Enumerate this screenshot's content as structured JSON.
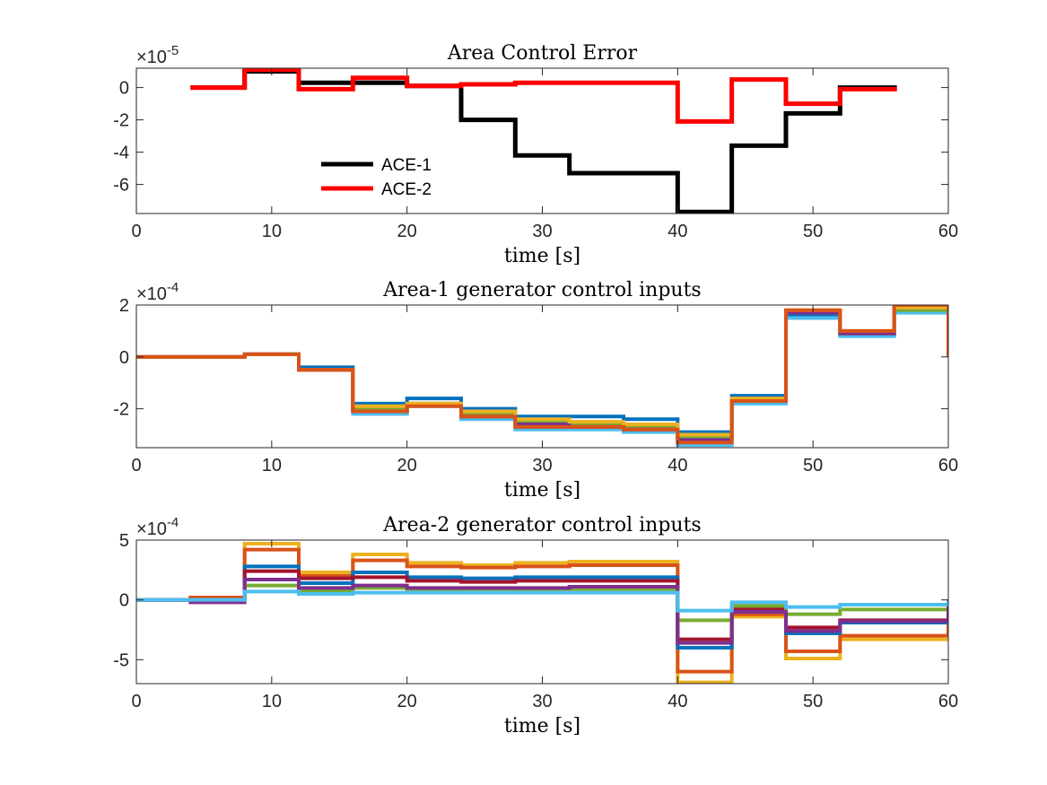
{
  "chart_data": [
    {
      "type": "line",
      "step": true,
      "title": "Area Control Error",
      "xlabel": "time [s]",
      "ylabel": "",
      "exponent_base": "×10",
      "exponent_power": "-5",
      "xlim": [
        0,
        60
      ],
      "ylim": [
        -7.8,
        1.2
      ],
      "xticks": [
        "0",
        "10",
        "20",
        "30",
        "40",
        "50",
        "60"
      ],
      "yticks": [
        "0",
        "-2",
        "-4",
        "-6"
      ],
      "ytick_values": [
        0,
        -2,
        -4,
        -6
      ],
      "legend_location": "lower-left",
      "series": [
        {
          "name": "ACE-1",
          "color": "#000000",
          "linewidth": 5,
          "x": [
            4,
            8,
            12,
            16,
            20,
            24,
            28,
            32,
            36,
            40,
            44,
            48,
            52,
            56
          ],
          "y": [
            0,
            1.0,
            0.3,
            0.3,
            0.1,
            -2.0,
            -4.2,
            -5.3,
            -5.3,
            -7.7,
            -3.6,
            -1.6,
            0.0,
            0.0
          ]
        },
        {
          "name": "ACE-2",
          "color": "#ff0000",
          "linewidth": 5,
          "x": [
            4,
            8,
            12,
            16,
            20,
            24,
            28,
            32,
            36,
            40,
            44,
            48,
            52,
            56
          ],
          "y": [
            0,
            1.1,
            -0.1,
            0.6,
            0.1,
            0.2,
            0.3,
            0.3,
            0.3,
            -2.1,
            0.5,
            -1.0,
            -0.1,
            -0.1
          ]
        }
      ]
    },
    {
      "type": "line",
      "step": true,
      "title": "Area-1 generator control inputs",
      "xlabel": "time [s]",
      "ylabel": "",
      "exponent_base": "×10",
      "exponent_power": "-4",
      "xlim": [
        0,
        60
      ],
      "ylim": [
        -3.5,
        2.0
      ],
      "xticks": [
        "0",
        "10",
        "20",
        "30",
        "40",
        "50",
        "60"
      ],
      "yticks": [
        "2",
        "0",
        "-2"
      ],
      "ytick_values": [
        2,
        0,
        -2
      ],
      "series": [
        {
          "color": "#0072bd",
          "x": [
            0,
            8,
            12,
            16,
            20,
            24,
            28,
            32,
            36,
            40,
            44,
            48,
            52,
            56,
            60
          ],
          "y": [
            0,
            0.1,
            -0.4,
            -1.8,
            -1.6,
            -2.0,
            -2.3,
            -2.3,
            -2.4,
            -2.9,
            -1.5,
            1.6,
            0.9,
            1.8,
            1.8
          ]
        },
        {
          "color": "#4dbeee",
          "x": [
            0,
            8,
            12,
            16,
            20,
            24,
            28,
            32,
            36,
            40,
            44,
            48,
            52,
            56,
            60
          ],
          "y": [
            0,
            0.1,
            -0.5,
            -2.2,
            -1.9,
            -2.4,
            -2.8,
            -2.8,
            -2.9,
            -3.4,
            -1.8,
            1.5,
            0.8,
            1.7,
            1.7
          ]
        },
        {
          "color": "#77ac30",
          "x": [
            0,
            8,
            12,
            16,
            20,
            24,
            28,
            32,
            36,
            40,
            44,
            48,
            52,
            56,
            60
          ],
          "y": [
            0,
            0.1,
            -0.5,
            -2.0,
            -1.8,
            -2.2,
            -2.5,
            -2.6,
            -2.7,
            -3.1,
            -1.7,
            1.7,
            0.9,
            1.8,
            1.8
          ]
        },
        {
          "color": "#7e2f8e",
          "x": [
            0,
            8,
            12,
            16,
            20,
            24,
            28,
            32,
            36,
            40,
            44,
            48,
            52,
            56,
            60
          ],
          "y": [
            0,
            0.1,
            -0.5,
            -2.1,
            -1.8,
            -2.3,
            -2.6,
            -2.7,
            -2.8,
            -3.2,
            -1.7,
            1.7,
            0.9,
            1.9,
            1.9
          ]
        },
        {
          "color": "#edb120",
          "x": [
            0,
            8,
            12,
            16,
            20,
            24,
            28,
            32,
            36,
            40,
            44,
            48,
            52,
            56,
            60
          ],
          "y": [
            0,
            0.1,
            -0.5,
            -1.9,
            -1.8,
            -2.1,
            -2.4,
            -2.5,
            -2.6,
            -3.0,
            -1.6,
            1.8,
            1.0,
            1.9,
            1.9
          ]
        },
        {
          "color": "#d95319",
          "x": [
            0,
            8,
            12,
            16,
            20,
            24,
            28,
            32,
            36,
            40,
            44,
            48,
            52,
            56,
            60
          ],
          "y": [
            0,
            0.1,
            -0.5,
            -2.1,
            -1.9,
            -2.3,
            -2.7,
            -2.7,
            -2.8,
            -3.3,
            -1.7,
            1.8,
            1.0,
            2.0,
            2.0
          ]
        }
      ]
    },
    {
      "type": "line",
      "step": true,
      "title": "Area-2 generator control inputs",
      "xlabel": "time [s]",
      "ylabel": "",
      "exponent_base": "×10",
      "exponent_power": "-4",
      "xlim": [
        0,
        60
      ],
      "ylim": [
        -7,
        5
      ],
      "xticks": [
        "0",
        "10",
        "20",
        "30",
        "40",
        "50",
        "60"
      ],
      "yticks": [
        "5",
        "0",
        "-5"
      ],
      "ytick_values": [
        5,
        0,
        -5
      ],
      "series": [
        {
          "color": "#edb120",
          "x": [
            0,
            4,
            8,
            12,
            16,
            20,
            24,
            28,
            32,
            36,
            40,
            44,
            48,
            52,
            56,
            60
          ],
          "y": [
            0,
            0.2,
            4.7,
            2.3,
            3.8,
            3.1,
            2.9,
            3.1,
            3.2,
            3.2,
            -6.9,
            -1.4,
            -4.9,
            -3.3,
            -3.3,
            -3.3
          ]
        },
        {
          "color": "#d95319",
          "x": [
            0,
            4,
            8,
            12,
            16,
            20,
            24,
            28,
            32,
            36,
            40,
            44,
            48,
            52,
            56,
            60
          ],
          "y": [
            0,
            0.2,
            4.2,
            2.0,
            3.3,
            2.8,
            2.7,
            2.8,
            2.9,
            2.9,
            -6.0,
            -1.2,
            -4.3,
            -3.0,
            -3.0,
            -3.0
          ]
        },
        {
          "color": "#0072bd",
          "x": [
            0,
            4,
            8,
            12,
            16,
            20,
            24,
            28,
            32,
            36,
            40,
            44,
            48,
            52,
            56,
            60
          ],
          "y": [
            0,
            0,
            2.8,
            1.4,
            2.3,
            1.9,
            1.8,
            1.9,
            1.9,
            1.9,
            -4.0,
            -0.9,
            -2.8,
            -1.9,
            -1.9,
            -1.9
          ]
        },
        {
          "color": "#a2142f",
          "x": [
            0,
            4,
            8,
            12,
            16,
            20,
            24,
            28,
            32,
            36,
            40,
            44,
            48,
            52,
            56,
            60
          ],
          "y": [
            0,
            0,
            2.4,
            1.8,
            1.9,
            1.6,
            1.5,
            1.6,
            1.6,
            1.6,
            -3.3,
            -0.7,
            -2.3,
            -1.7,
            -1.7,
            -1.7
          ]
        },
        {
          "color": "#77ac30",
          "x": [
            0,
            4,
            8,
            12,
            16,
            20,
            24,
            28,
            32,
            36,
            40,
            44,
            48,
            52,
            56,
            60
          ],
          "y": [
            0,
            0,
            1.2,
            0.8,
            1.0,
            0.9,
            0.9,
            0.9,
            0.9,
            0.9,
            -1.7,
            -0.5,
            -1.2,
            -0.8,
            -0.8,
            -0.8
          ]
        },
        {
          "color": "#7e2f8e",
          "x": [
            0,
            4,
            8,
            12,
            16,
            20,
            24,
            28,
            32,
            36,
            40,
            44,
            48,
            52,
            56,
            60
          ],
          "y": [
            0,
            -0.2,
            1.7,
            1.0,
            1.2,
            1.0,
            1.0,
            1.0,
            1.1,
            1.1,
            -3.6,
            -1.0,
            -2.6,
            -1.8,
            -1.8,
            -1.8
          ]
        },
        {
          "color": "#4dbeee",
          "x": [
            0,
            4,
            8,
            12,
            16,
            20,
            24,
            28,
            32,
            36,
            40,
            44,
            48,
            52,
            56,
            60
          ],
          "y": [
            0,
            0,
            0.7,
            0.5,
            0.6,
            0.6,
            0.6,
            0.6,
            0.6,
            0.6,
            -0.9,
            -0.2,
            -0.6,
            -0.4,
            -0.4,
            -0.4
          ]
        }
      ]
    }
  ]
}
